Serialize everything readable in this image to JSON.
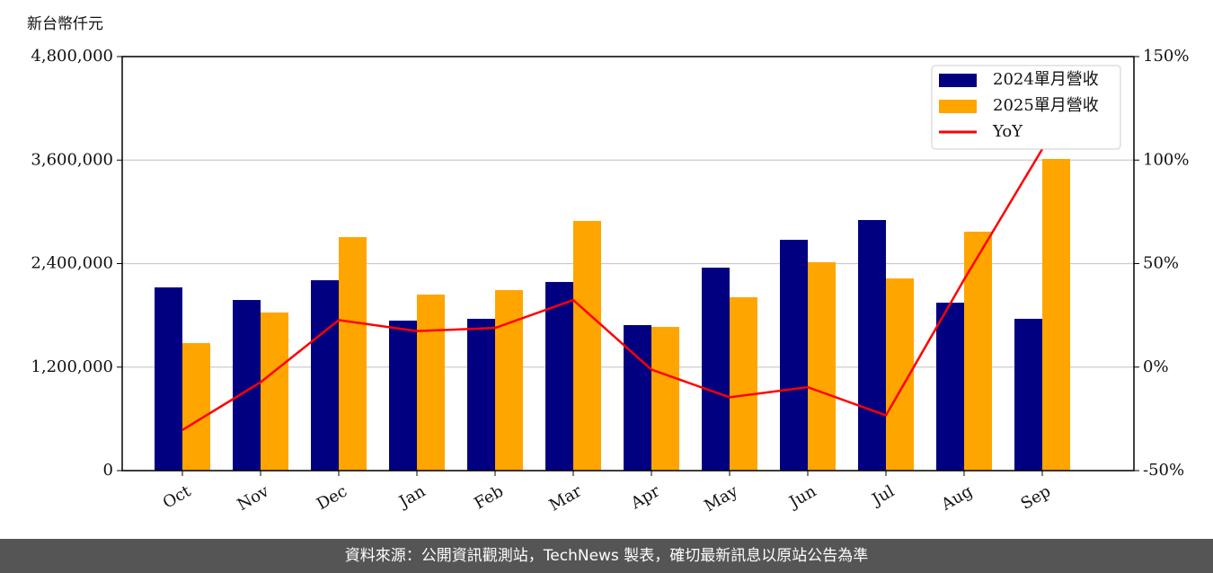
{
  "chart_data": {
    "type": "bar",
    "y_label": "新台幣仟元",
    "categories": [
      "Oct",
      "Nov",
      "Dec",
      "Jan",
      "Feb",
      "Mar",
      "Apr",
      "May",
      "Jun",
      "Jul",
      "Aug",
      "Sep"
    ],
    "series": [
      {
        "name": "2024單月營收",
        "color": "#000080",
        "values": [
          2124000,
          1978000,
          2207000,
          1739000,
          1760000,
          2187000,
          1687000,
          2353000,
          2676000,
          2905000,
          1947000,
          1760000
        ]
      },
      {
        "name": "2025單月營收",
        "color": "#ffa500",
        "values": [
          1478000,
          1833000,
          2707000,
          2041000,
          2093000,
          2895000,
          1666000,
          2010000,
          2416000,
          2228000,
          2770000,
          3613000
        ]
      },
      {
        "name": "YoY",
        "type": "line",
        "axis": "y2",
        "color": "#ff0000",
        "values": [
          -30.4,
          -7.3,
          22.7,
          17.4,
          18.9,
          32.4,
          -1.2,
          -14.6,
          -9.7,
          -23.3,
          42.3,
          105.3
        ]
      }
    ],
    "ylim": [
      0,
      4800000
    ],
    "yticks": [
      0,
      {
        "value": 1200000,
        "label": "1,200,000"
      },
      {
        "value": 2400000,
        "label": "2,400,000"
      },
      {
        "value": 3600000,
        "label": "3,600,000"
      },
      {
        "value": 4800000,
        "label": "4,800,000"
      }
    ],
    "y2lim": [
      -50,
      150
    ],
    "y2ticks": [
      {
        "value": -50,
        "label": "-50%"
      },
      {
        "value": 0,
        "label": "0%"
      },
      {
        "value": 50,
        "label": "50%"
      },
      {
        "value": 100,
        "label": "100%"
      },
      {
        "value": 150,
        "label": "150%"
      }
    ],
    "grid": true,
    "legend": "upper right"
  },
  "footer": "資料來源：公開資訊觀測站，TechNews 製表，確切最新訊息以原站公告為準"
}
